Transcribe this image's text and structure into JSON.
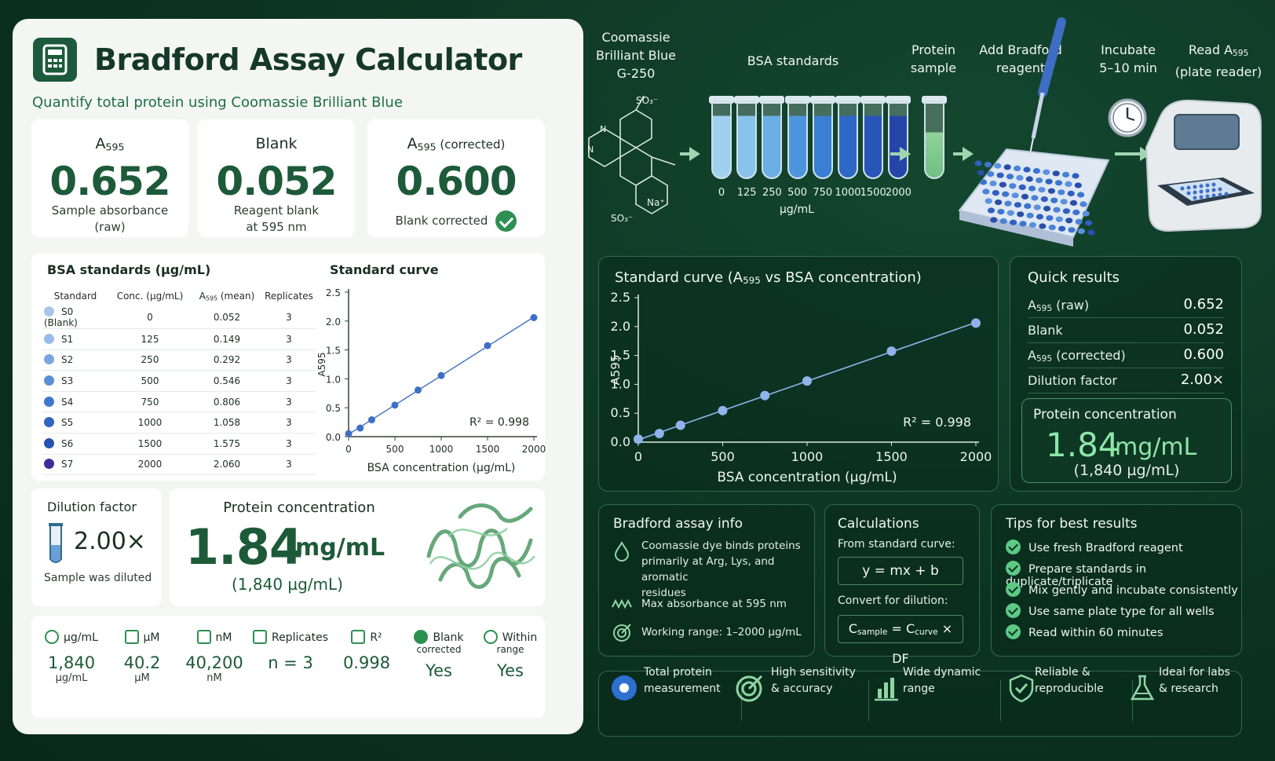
{
  "app": {
    "title": "Bradford Assay Calculator",
    "subtitle": "Quantify total protein using Coomassie Brilliant Blue"
  },
  "metrics": {
    "raw": {
      "label_main": "A",
      "label_sub": "595",
      "value": "0.652",
      "desc1": "Sample absorbance",
      "desc2": "(raw)"
    },
    "blank": {
      "label": "Blank",
      "value": "0.052",
      "desc1": "Reagent blank",
      "desc2": "at 595 nm"
    },
    "corrected": {
      "label_main": "A",
      "label_sub": "595",
      "label_suffix": " (corrected)",
      "value": "0.600",
      "desc": "Blank corrected"
    }
  },
  "bsa_table": {
    "title": "BSA standards (µg/mL)",
    "headers": {
      "standard": "Standard",
      "conc": "Conc. (µg/mL)",
      "a_main": "A",
      "a_sub": "595",
      "a_suffix": " (mean)",
      "replicates": "Replicates"
    },
    "rows": [
      {
        "standard": "S0 (Blank)",
        "conc": "0",
        "a595": "0.052",
        "replicates": "3",
        "color": "#a9c7ea"
      },
      {
        "standard": "S1",
        "conc": "125",
        "a595": "0.149",
        "replicates": "3",
        "color": "#98bce8"
      },
      {
        "standard": "S2",
        "conc": "250",
        "a595": "0.292",
        "replicates": "3",
        "color": "#7aa6e0"
      },
      {
        "standard": "S3",
        "conc": "500",
        "a595": "0.546",
        "replicates": "3",
        "color": "#5a8fd6"
      },
      {
        "standard": "S4",
        "conc": "750",
        "a595": "0.806",
        "replicates": "3",
        "color": "#3f78cc"
      },
      {
        "standard": "S5",
        "conc": "1000",
        "a595": "1.058",
        "replicates": "3",
        "color": "#2f66c1"
      },
      {
        "standard": "S6",
        "conc": "1500",
        "a595": "1.575",
        "replicates": "3",
        "color": "#2653b2"
      },
      {
        "standard": "S7",
        "conc": "2000",
        "a595": "2.060",
        "replicates": "3",
        "color": "#3c2f9c"
      }
    ]
  },
  "chart_data": [
    {
      "type": "scatter",
      "title": "Standard curve",
      "xlabel": "BSA concentration (µg/mL)",
      "ylabel": "A595",
      "x": [
        0,
        125,
        250,
        500,
        750,
        1000,
        1500,
        2000
      ],
      "y": [
        0.052,
        0.149,
        0.292,
        0.546,
        0.806,
        1.058,
        1.575,
        2.06
      ],
      "xlim": [
        0,
        2000
      ],
      "ylim": [
        0,
        2.5
      ],
      "xticks": [
        "0",
        "500",
        "1000",
        "1500",
        "2000"
      ],
      "yticks": [
        "0.0",
        "0.5",
        "1.0",
        "1.5",
        "2.0",
        "2.5"
      ],
      "annotation": "R² = 0.998",
      "color": "#3e6fc4"
    },
    {
      "type": "scatter",
      "title_main": "Standard curve (A",
      "title_sub": "595",
      "title_suffix": " vs BSA concentration)",
      "xlabel": "BSA concentration (µg/mL)",
      "ylabel": "A595",
      "x": [
        0,
        125,
        250,
        500,
        750,
        1000,
        1500,
        2000
      ],
      "y": [
        0.052,
        0.149,
        0.292,
        0.546,
        0.806,
        1.058,
        1.575,
        2.06
      ],
      "xlim": [
        0,
        2000
      ],
      "ylim": [
        0,
        2.5
      ],
      "xticks": [
        "0",
        "500",
        "1000",
        "1500",
        "2000"
      ],
      "yticks": [
        "0.0",
        "0.5",
        "1.0",
        "1.5",
        "2.0",
        "2.5"
      ],
      "annotation": "R² = 0.998",
      "color": "#8fb3ea"
    }
  ],
  "dilution": {
    "title": "Dilution factor",
    "value": "2.00×",
    "desc": "Sample was diluted"
  },
  "concentration": {
    "title": "Protein concentration",
    "value": "1.84",
    "unit": "mg/mL",
    "alt": "(1,840 µg/mL)"
  },
  "stats": [
    {
      "icon": "drop-icon",
      "head": "µg/mL",
      "value": "1,840",
      "unit": "µg/mL"
    },
    {
      "icon": "atom-icon",
      "head": "µM",
      "value": "40.2",
      "unit": "µM"
    },
    {
      "icon": "molecule-icon",
      "head": "nM",
      "value": "40,200",
      "unit": "nM"
    },
    {
      "icon": "test-tubes-icon",
      "head": "Replicates",
      "value": "n = 3",
      "unit": ""
    },
    {
      "icon": "bar-chart-icon",
      "head": "R²",
      "value": "0.998",
      "unit": ""
    },
    {
      "icon": "check-icon",
      "head": "Blank",
      "head2": "corrected",
      "value": "Yes",
      "unit": ""
    },
    {
      "icon": "target-icon",
      "head": "Within",
      "head2": "range",
      "value": "Yes",
      "unit": ""
    }
  ],
  "workflow": {
    "dye": {
      "l1": "Coomassie",
      "l2": "Brilliant Blue",
      "l3": "G-250"
    },
    "standards": {
      "label": "BSA standards",
      "ticks": [
        "0",
        "125",
        "250",
        "500",
        "750",
        "1000",
        "1500",
        "2000"
      ],
      "unit": "µg/mL"
    },
    "sample": {
      "l1": "Protein",
      "l2": "sample"
    },
    "reagent": {
      "l1": "Add Bradford",
      "l2": "reagent"
    },
    "incubate": {
      "l1": "Incubate",
      "l2": "5–10 min"
    },
    "read": {
      "l1_main": "Read A",
      "l1_sub": "595",
      "l2": "(plate reader)"
    },
    "chem": {
      "so3_top": "SO₃⁻",
      "so3_bottom": "SO₃⁻",
      "na": "Na⁺",
      "n1": "N",
      "n2": "N"
    }
  },
  "quick_results": {
    "title": "Quick results",
    "rows": [
      {
        "k_main": "A",
        "k_sub": "595",
        "k_suffix": " (raw)",
        "v": "0.652"
      },
      {
        "k_main": "Blank",
        "k_sub": "",
        "k_suffix": "",
        "v": "0.052"
      },
      {
        "k_main": "A",
        "k_sub": "595",
        "k_suffix": " (corrected)",
        "v": "0.600"
      },
      {
        "k_main": "Dilution factor",
        "k_sub": "",
        "k_suffix": "",
        "v": "2.00×"
      }
    ],
    "conc_title": "Protein concentration",
    "conc_value": "1.84",
    "conc_unit": "mg/mL",
    "conc_alt": "(1,840 µg/mL)"
  },
  "assay_info": {
    "title": "Bradford assay info",
    "line1": "Coomassie dye binds proteins",
    "line2": "primarily at Arg, Lys, and aromatic",
    "line3": "residues",
    "line4": "Max absorbance at 595 nm",
    "line5": "Working range: 1–2000 µg/mL"
  },
  "calculations": {
    "title": "Calculations",
    "from": "From standard curve:",
    "formula1": "y = mx + b",
    "convert": "Convert for dilution:",
    "f2_a": "C",
    "f2_a_sub": "sample",
    "f2_b": " = C",
    "f2_b_sub": "curve",
    "f2_c": " × DF"
  },
  "tips": {
    "title": "Tips for best results",
    "items": [
      "Use fresh Bradford reagent",
      "Prepare standards in duplicate/triplicate",
      "Mix gently and incubate consistently",
      "Use same plate type for all wells",
      "Read within 60 minutes"
    ]
  },
  "features": [
    {
      "icon": "blue-dot-icon",
      "l1": "Total protein",
      "l2": "measurement"
    },
    {
      "icon": "target-arrow-icon",
      "l1": "High sensitivity",
      "l2": "& accuracy"
    },
    {
      "icon": "bar-chart-icon",
      "l1": "Wide dynamic",
      "l2": "range"
    },
    {
      "icon": "shield-check-icon",
      "l1": "Reliable &",
      "l2": "reproducible"
    },
    {
      "icon": "flask-icon",
      "l1": "Ideal for labs",
      "l2": "& research"
    }
  ]
}
